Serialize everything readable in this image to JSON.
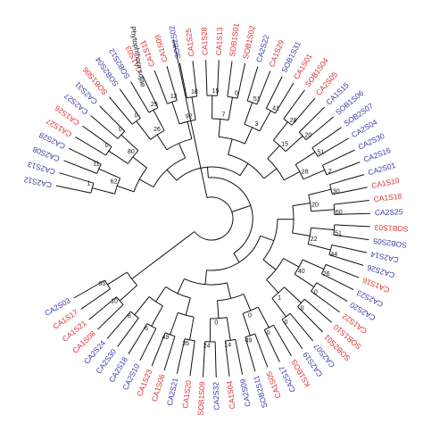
{
  "colors": {
    "group_ca1": "#e03030",
    "group_other": "#3a3aa8",
    "outgroup": "#111111",
    "branch": "#111111"
  },
  "outgroup": "Phytophthora sojae",
  "tips": [
    {
      "label": "CA2S12",
      "group": "blue"
    },
    {
      "label": "CA2S13",
      "group": "blue"
    },
    {
      "label": "CA2S08",
      "group": "blue"
    },
    {
      "label": "CA2S28",
      "group": "blue"
    },
    {
      "label": "CA1S27",
      "group": "red"
    },
    {
      "label": "CA1S26",
      "group": "red"
    },
    {
      "label": "CA2S27",
      "group": "blue"
    },
    {
      "label": "CA2S31",
      "group": "blue"
    },
    {
      "label": "SOB1S06",
      "group": "red"
    },
    {
      "label": "SOB2S04",
      "group": "blue"
    },
    {
      "label": "SOB2S12",
      "group": "blue"
    },
    {
      "label": "CA1S03",
      "group": "red"
    },
    {
      "label": "CA1S11",
      "group": "red"
    },
    {
      "label": "CA1S09",
      "group": "red"
    },
    {
      "label": "SOB2S02",
      "group": "blue"
    },
    {
      "label": "CA1S25",
      "group": "red"
    },
    {
      "label": "CA1S28",
      "group": "red"
    },
    {
      "label": "CA1S13",
      "group": "red"
    },
    {
      "label": "SOB1S01",
      "group": "red"
    },
    {
      "label": "SOB1S02",
      "group": "red"
    },
    {
      "label": "CA2S22",
      "group": "blue"
    },
    {
      "label": "CA1S29",
      "group": "red"
    },
    {
      "label": "SOB1S31",
      "group": "blue"
    },
    {
      "label": "CA1S01",
      "group": "red"
    },
    {
      "label": "SOB1S04",
      "group": "red"
    },
    {
      "label": "CA2S05",
      "group": "red"
    },
    {
      "label": "CA1S15",
      "group": "blue"
    },
    {
      "label": "SOB1S06",
      "group": "blue"
    },
    {
      "label": "SOB2S07",
      "group": "blue"
    },
    {
      "label": "CA2S04",
      "group": "blue"
    },
    {
      "label": "CA2S30",
      "group": "blue"
    },
    {
      "label": "CA2S16",
      "group": "blue"
    },
    {
      "label": "CA2S01",
      "group": "blue"
    },
    {
      "label": "CA1S10",
      "group": "red"
    },
    {
      "label": "CA1S18",
      "group": "red"
    },
    {
      "label": "CA2S25",
      "group": "blue"
    },
    {
      "label": "SOB1S03",
      "group": "red"
    },
    {
      "label": "SOB2S05",
      "group": "blue"
    },
    {
      "label": "CA2S14",
      "group": "blue"
    },
    {
      "label": "CA2S26",
      "group": "blue"
    },
    {
      "label": "CA1S16",
      "group": "red"
    },
    {
      "label": "CA2S23",
      "group": "blue"
    },
    {
      "label": "CA2S20",
      "group": "blue"
    },
    {
      "label": "CA1S22",
      "group": "red"
    },
    {
      "label": "SOB1S10",
      "group": "red"
    },
    {
      "label": "SOB2S01",
      "group": "red"
    },
    {
      "label": "CA2S07",
      "group": "blue"
    },
    {
      "label": "CA2S19",
      "group": "blue"
    },
    {
      "label": "KS1BOS",
      "group": "red"
    },
    {
      "label": "CA2S17",
      "group": "blue"
    },
    {
      "label": "CA1S05",
      "group": "red"
    },
    {
      "label": "SOB2S11",
      "group": "blue"
    },
    {
      "label": "CA2S09",
      "group": "blue"
    },
    {
      "label": "CA1S04",
      "group": "red"
    },
    {
      "label": "CA2S32",
      "group": "blue"
    },
    {
      "label": "SOB1S09",
      "group": "red"
    },
    {
      "label": "CA1S20",
      "group": "red"
    },
    {
      "label": "CA2S21",
      "group": "blue"
    },
    {
      "label": "CA1S06",
      "group": "red"
    },
    {
      "label": "CA1S23",
      "group": "red"
    },
    {
      "label": "CA2S10",
      "group": "blue"
    },
    {
      "label": "CA2S18",
      "group": "blue"
    },
    {
      "label": "CA2S30",
      "group": "blue"
    },
    {
      "label": "CA2S24",
      "group": "blue"
    },
    {
      "label": "CA1S08",
      "group": "red"
    },
    {
      "label": "CA1S21",
      "group": "red"
    },
    {
      "label": "CA1S17",
      "group": "red"
    },
    {
      "label": "CA2S03",
      "group": "blue"
    }
  ],
  "support_values": [
    "1",
    "11",
    "0",
    "0",
    "0",
    "29",
    "12",
    "18",
    "15",
    "0",
    "51",
    "41",
    "28",
    "20",
    "51",
    "2",
    "30",
    "60",
    "51",
    "44",
    "26",
    "0",
    "0",
    "0",
    "0",
    "49",
    "14",
    "24",
    "35",
    "49",
    "6",
    "8",
    "10",
    "65",
    "62",
    "80",
    "26",
    "92",
    "7",
    "3",
    "15",
    "28",
    "20",
    "22",
    "40",
    "1",
    "0",
    "0"
  ]
}
